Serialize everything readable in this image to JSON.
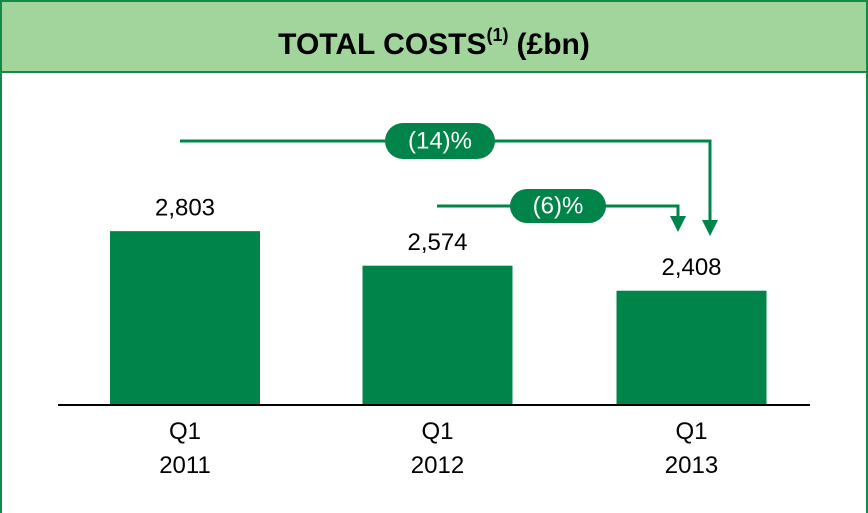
{
  "chart_data": {
    "type": "bar",
    "title": "TOTAL COSTS",
    "title_note": "(1)",
    "title_unit": "(£bn)",
    "categories": [
      "Q1\n2011",
      "Q1\n2012",
      "Q1\n2013"
    ],
    "values": [
      2803,
      2574,
      2408
    ],
    "value_labels": [
      "2,803",
      "2,574",
      "2,408"
    ],
    "color": "#00844a",
    "ylim": [
      1650,
      2950
    ],
    "annotations": [
      {
        "text": "(14)%"
      },
      {
        "text": "(6)%"
      }
    ]
  }
}
